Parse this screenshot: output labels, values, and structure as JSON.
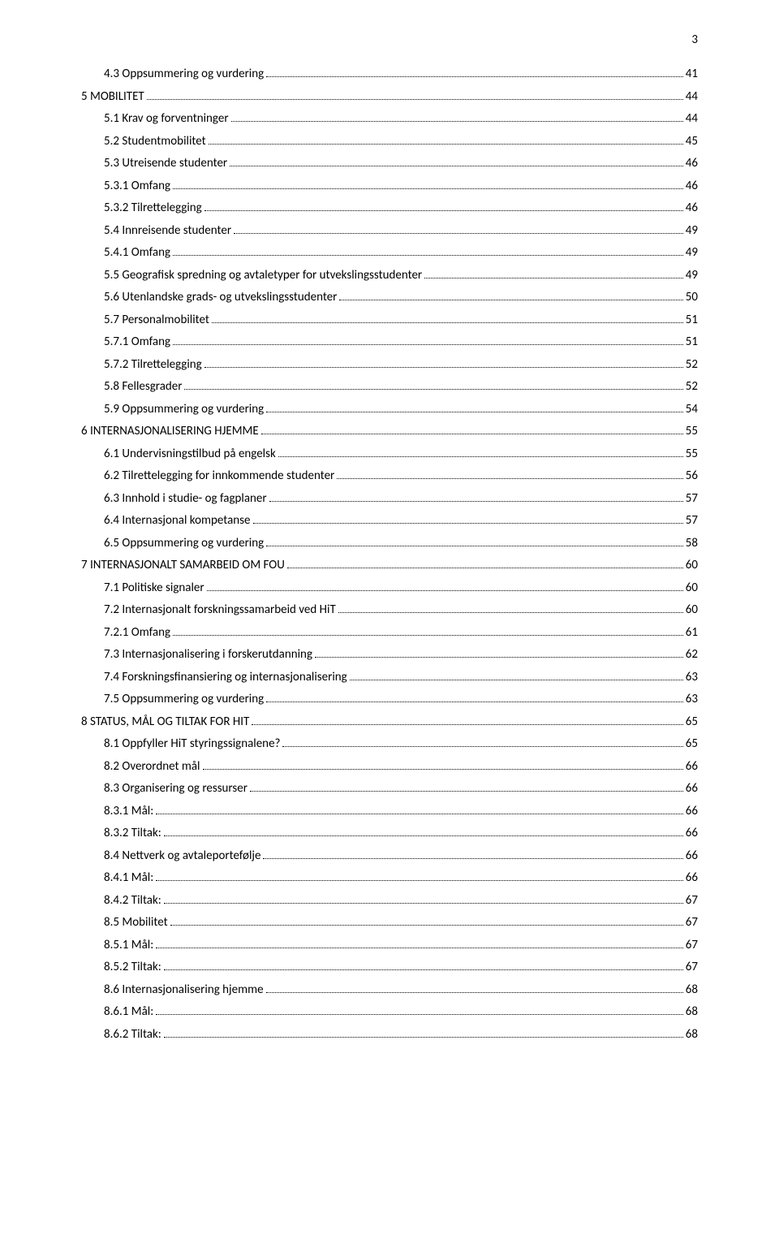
{
  "pageNumber": "3",
  "entries": [
    {
      "label": "4.3 Oppsummering og vurdering",
      "page": "41",
      "level": 1
    },
    {
      "label": "5 MOBILITET",
      "page": "44",
      "level": 0
    },
    {
      "label": "5.1 Krav og forventninger",
      "page": "44",
      "level": 1
    },
    {
      "label": "5.2 Studentmobilitet",
      "page": "45",
      "level": 1
    },
    {
      "label": "5.3 Utreisende studenter",
      "page": "46",
      "level": 1
    },
    {
      "label": "5.3.1 Omfang",
      "page": "46",
      "level": 2
    },
    {
      "label": "5.3.2 Tilrettelegging",
      "page": "46",
      "level": 2
    },
    {
      "label": "5.4 Innreisende studenter",
      "page": "49",
      "level": 1
    },
    {
      "label": "5.4.1 Omfang",
      "page": "49",
      "level": 2
    },
    {
      "label": "5.5 Geografisk spredning og avtaletyper for utvekslingsstudenter",
      "page": "49",
      "level": 1
    },
    {
      "label": "5.6 Utenlandske grads- og utvekslingsstudenter",
      "page": "50",
      "level": 1
    },
    {
      "label": "5.7 Personalmobilitet",
      "page": "51",
      "level": 1
    },
    {
      "label": "5.7.1 Omfang",
      "page": "51",
      "level": 2
    },
    {
      "label": "5.7.2 Tilrettelegging",
      "page": "52",
      "level": 2
    },
    {
      "label": "5.8 Fellesgrader",
      "page": "52",
      "level": 1
    },
    {
      "label": "5.9 Oppsummering og vurdering",
      "page": "54",
      "level": 1
    },
    {
      "label": "6 INTERNASJONALISERING HJEMME",
      "page": "55",
      "level": 0
    },
    {
      "label": "6.1 Undervisningstilbud på engelsk",
      "page": "55",
      "level": 1
    },
    {
      "label": "6.2 Tilrettelegging for innkommende studenter",
      "page": "56",
      "level": 1
    },
    {
      "label": "6.3 Innhold i studie- og fagplaner",
      "page": "57",
      "level": 1
    },
    {
      "label": "6.4 Internasjonal kompetanse",
      "page": "57",
      "level": 1
    },
    {
      "label": "6.5 Oppsummering og vurdering",
      "page": "58",
      "level": 1
    },
    {
      "label": "7 INTERNASJONALT SAMARBEID OM FOU",
      "page": "60",
      "level": 0
    },
    {
      "label": "7.1 Politiske signaler",
      "page": "60",
      "level": 1
    },
    {
      "label": "7.2 Internasjonalt forskningssamarbeid ved HiT",
      "page": "60",
      "level": 1
    },
    {
      "label": "7.2.1 Omfang",
      "page": "61",
      "level": 2
    },
    {
      "label": "7.3 Internasjonalisering i forskerutdanning",
      "page": "62",
      "level": 1
    },
    {
      "label": "7.4 Forskningsfinansiering og internasjonalisering",
      "page": "63",
      "level": 1
    },
    {
      "label": "7.5 Oppsummering og vurdering",
      "page": "63",
      "level": 1
    },
    {
      "label": "8 STATUS, MÅL OG TILTAK FOR HIT",
      "page": "65",
      "level": 0
    },
    {
      "label": "8.1 Oppfyller HiT styringssignalene?",
      "page": "65",
      "level": 1
    },
    {
      "label": "8.2 Overordnet mål",
      "page": "66",
      "level": 1
    },
    {
      "label": "8.3 Organisering og ressurser",
      "page": "66",
      "level": 1
    },
    {
      "label": "8.3.1 Mål:",
      "page": "66",
      "level": 2
    },
    {
      "label": "8.3.2 Tiltak:",
      "page": "66",
      "level": 2
    },
    {
      "label": "8.4 Nettverk og avtaleportefølje",
      "page": "66",
      "level": 1
    },
    {
      "label": "8.4.1 Mål:",
      "page": "66",
      "level": 2
    },
    {
      "label": "8.4.2 Tiltak:",
      "page": "67",
      "level": 2
    },
    {
      "label": "8.5 Mobilitet",
      "page": "67",
      "level": 1
    },
    {
      "label": "8.5.1 Mål:",
      "page": "67",
      "level": 2
    },
    {
      "label": "8.5.2 Tiltak:",
      "page": "67",
      "level": 2
    },
    {
      "label": "8.6 Internasjonalisering hjemme",
      "page": "68",
      "level": 1
    },
    {
      "label": "8.6.1 Mål:",
      "page": "68",
      "level": 2
    },
    {
      "label": "8.6.2 Tiltak:",
      "page": "68",
      "level": 2
    }
  ]
}
